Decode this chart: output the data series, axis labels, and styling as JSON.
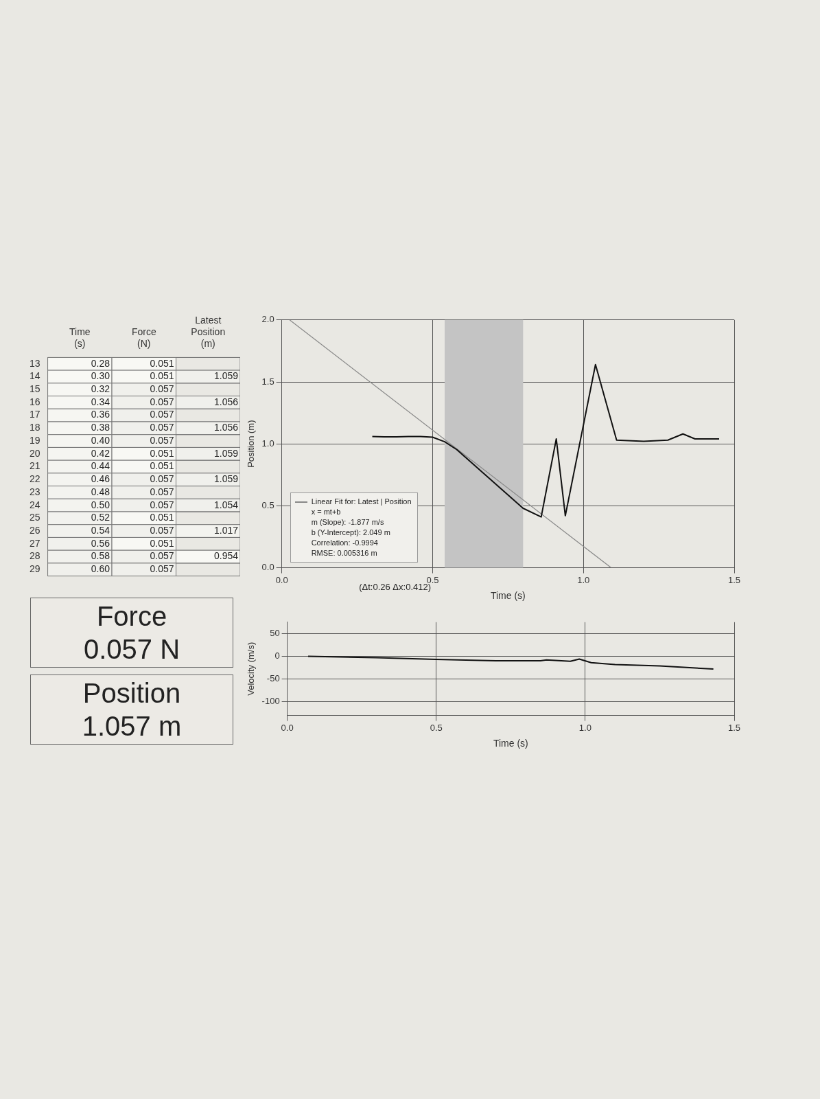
{
  "chart_data": [
    {
      "type": "heatmap",
      "categories": [
        "Time (s)",
        "Force (N)",
        "Latest Position (m)"
      ],
      "y_categories": [
        "13",
        "14",
        "15",
        "16",
        "17",
        "18",
        "19",
        "20",
        "21",
        "22",
        "23",
        "24",
        "25",
        "26",
        "27",
        "28",
        "29"
      ],
      "cells": [
        [
          0.28,
          0.051,
          null
        ],
        [
          0.3,
          0.051,
          1.059
        ],
        [
          0.32,
          0.057,
          null
        ],
        [
          0.34,
          0.057,
          1.056
        ],
        [
          0.36,
          0.057,
          null
        ],
        [
          0.38,
          0.057,
          1.056
        ],
        [
          0.4,
          0.057,
          null
        ],
        [
          0.42,
          0.051,
          1.059
        ],
        [
          0.44,
          0.051,
          null
        ],
        [
          0.46,
          0.057,
          1.059
        ],
        [
          0.48,
          0.057,
          null
        ],
        [
          0.5,
          0.057,
          1.054
        ],
        [
          0.52,
          0.051,
          null
        ],
        [
          0.54,
          0.057,
          1.017
        ],
        [
          0.56,
          0.051,
          null
        ],
        [
          0.58,
          0.057,
          0.954
        ],
        [
          0.6,
          0.057,
          null
        ]
      ],
      "cell_labels": [
        [
          "0.28",
          "0.051",
          null
        ],
        [
          "0.30",
          "0.051",
          "1.059"
        ],
        [
          "0.32",
          "0.057",
          null
        ],
        [
          "0.34",
          "0.057",
          "1.056"
        ],
        [
          "0.36",
          "0.057",
          null
        ],
        [
          "0.38",
          "0.057",
          "1.056"
        ],
        [
          "0.40",
          "0.057",
          null
        ],
        [
          "0.42",
          "0.051",
          "1.059"
        ],
        [
          "0.44",
          "0.051",
          null
        ],
        [
          "0.46",
          "0.057",
          "1.059"
        ],
        [
          "0.48",
          "0.057",
          null
        ],
        [
          "0.50",
          "0.057",
          "1.054"
        ],
        [
          "0.52",
          "0.051",
          null
        ],
        [
          "0.54",
          "0.057",
          "1.017"
        ],
        [
          "0.56",
          "0.051",
          null
        ],
        [
          "0.58",
          "0.057",
          "0.954"
        ],
        [
          "0.60",
          "0.057",
          null
        ]
      ],
      "annotations": [
        "Force",
        "0.057 N",
        "Position",
        "1.057 m"
      ]
    },
    {
      "type": "line",
      "xlabel": "Time (s)",
      "ylabel": "Position (m)",
      "xlim": [
        0,
        1.5
      ],
      "xticks": [
        {
          "value": 0,
          "label": "0.0"
        },
        {
          "value": 0.5,
          "label": "0.5"
        },
        {
          "value": 1,
          "label": "1.0"
        },
        {
          "value": 1.5,
          "label": "1.5"
        }
      ],
      "ylim": [
        0,
        2
      ],
      "yticks": [
        {
          "value": 0,
          "label": "0.0"
        },
        {
          "value": 0.5,
          "label": "0.5"
        },
        {
          "value": 1,
          "label": "1.0"
        },
        {
          "value": 1.5,
          "label": "1.5"
        },
        {
          "value": 2,
          "label": "2.0"
        }
      ],
      "grid": true,
      "legend": "bottom left",
      "marker": "none",
      "series": [
        {
          "color": "#111111",
          "x": [
            0.3,
            0.34,
            0.38,
            0.42,
            0.46,
            0.5,
            0.54,
            0.58,
            0.67,
            0.8,
            0.86,
            0.91,
            0.94,
            1.04,
            1.11,
            1.2,
            1.28,
            1.33,
            1.37,
            1.45
          ],
          "values": [
            1.059,
            1.056,
            1.056,
            1.059,
            1.059,
            1.054,
            1.017,
            0.954,
            0.76,
            0.48,
            0.41,
            1.04,
            0.42,
            1.64,
            1.03,
            1.02,
            1.03,
            1.08,
            1.04,
            1.04
          ]
        },
        {
          "name": "Linear Fit for: Latest | Position",
          "type": "line",
          "color": "#888888",
          "x": [
            0.026,
            1.092
          ],
          "values": [
            2.0,
            0
          ]
        }
      ],
      "bands": [
        {
          "axis": "x",
          "from": 0.54,
          "to": 0.8,
          "color": "#c4c4c4"
        }
      ],
      "annotations": [
        "x = mt+b",
        "m (Slope): -1.877 m/s",
        "b (Y-Intercept): 2.049 m",
        "Correlation: -0.9994",
        "RMSE: 0.005316 m",
        {
          "text": "(Δt:0.26 Δx:0.412)",
          "x": 0.54,
          "y": 0
        }
      ]
    },
    {
      "type": "line",
      "xlabel": "Time (s)",
      "ylabel": "Velocity (m/s)",
      "xlim": [
        0,
        1.5
      ],
      "xticks": [
        {
          "value": 0,
          "label": "0.0"
        },
        {
          "value": 0.5,
          "label": "0.5"
        },
        {
          "value": 1,
          "label": "1.0"
        },
        {
          "value": 1.5,
          "label": "1.5"
        }
      ],
      "ylim": [
        -130,
        75
      ],
      "yticks": [
        50,
        0,
        -50,
        -100
      ],
      "grid": true,
      "marker": "none",
      "series": [
        {
          "color": "#111111",
          "x": [
            0.07,
            0.3,
            0.5,
            0.7,
            0.85,
            0.87,
            0.95,
            0.98,
            1.02,
            1.1,
            1.25,
            1.43
          ],
          "values": [
            0,
            -3,
            -7,
            -10,
            -10,
            -8,
            -11,
            -6,
            -14,
            -18,
            -21,
            -28
          ]
        }
      ]
    }
  ]
}
